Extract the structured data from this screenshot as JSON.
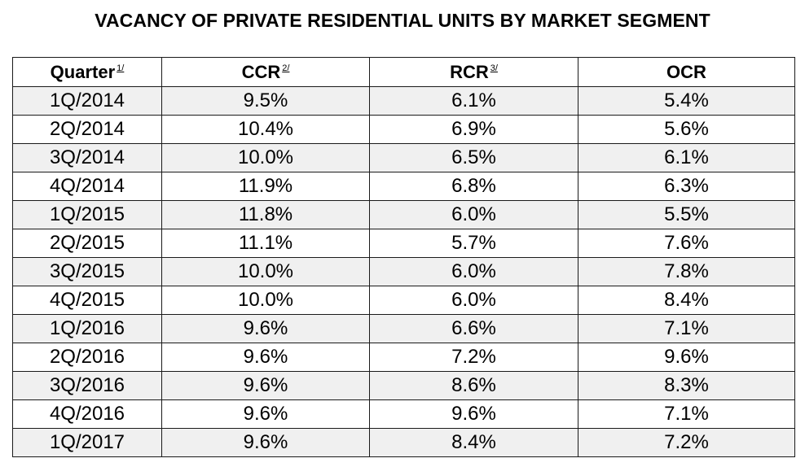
{
  "title": "VACANCY OF PRIVATE RESIDENTIAL UNITS BY MARKET SEGMENT",
  "table": {
    "headers": [
      {
        "label": "Quarter",
        "footnote": "1/"
      },
      {
        "label": "CCR",
        "footnote": "2/"
      },
      {
        "label": "RCR",
        "footnote": "3/"
      },
      {
        "label": "OCR",
        "footnote": ""
      }
    ],
    "rows": [
      [
        "1Q/2014",
        "9.5%",
        "6.1%",
        "5.4%"
      ],
      [
        "2Q/2014",
        "10.4%",
        "6.9%",
        "5.6%"
      ],
      [
        "3Q/2014",
        "10.0%",
        "6.5%",
        "6.1%"
      ],
      [
        "4Q/2014",
        "11.9%",
        "6.8%",
        "6.3%"
      ],
      [
        "1Q/2015",
        "11.8%",
        "6.0%",
        "5.5%"
      ],
      [
        "2Q/2015",
        "11.1%",
        "5.7%",
        "7.6%"
      ],
      [
        "3Q/2015",
        "10.0%",
        "6.0%",
        "7.8%"
      ],
      [
        "4Q/2015",
        "10.0%",
        "6.0%",
        "8.4%"
      ],
      [
        "1Q/2016",
        "9.6%",
        "6.6%",
        "7.1%"
      ],
      [
        "2Q/2016",
        "9.6%",
        "7.2%",
        "9.6%"
      ],
      [
        "3Q/2016",
        "9.6%",
        "8.6%",
        "8.3%"
      ],
      [
        "4Q/2016",
        "9.6%",
        "9.6%",
        "7.1%"
      ],
      [
        "1Q/2017",
        "9.6%",
        "8.4%",
        "7.2%"
      ]
    ]
  },
  "colors": {
    "stripe": "#f0f0f0",
    "background": "#ffffff",
    "border": "#1a1a1a"
  }
}
